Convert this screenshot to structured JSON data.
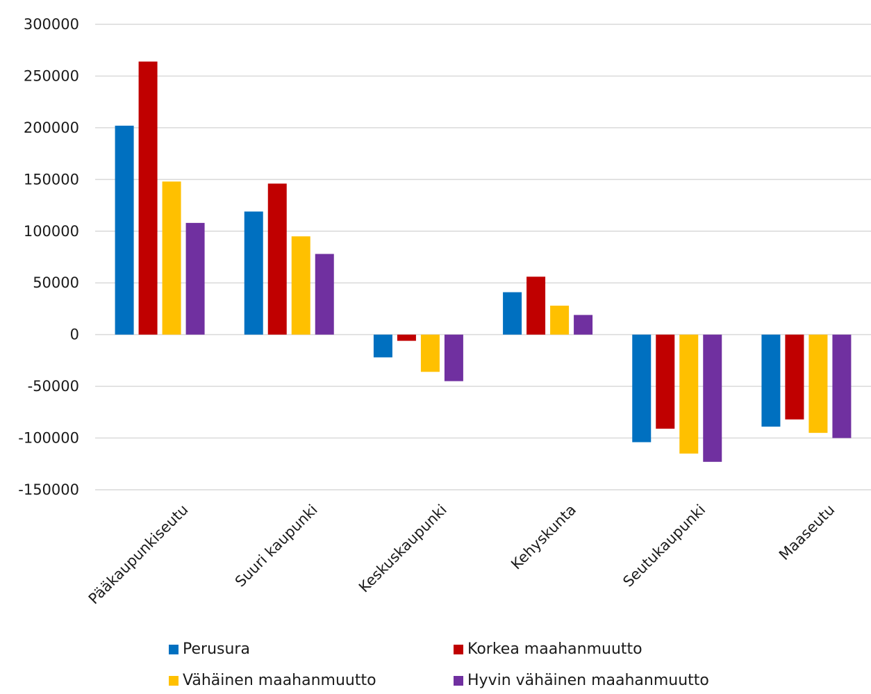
{
  "chart_data": {
    "type": "bar",
    "categories": [
      "Pääkaupunkiseutu",
      "Suuri kaupunki",
      "Keskuskaupunki",
      "Kehyskunta",
      "Seutukaupunki",
      "Maaseutu"
    ],
    "series": [
      {
        "name": "Perusura",
        "color": "#0070C0",
        "values": [
          202000,
          119000,
          -22000,
          41000,
          -104000,
          -89000
        ]
      },
      {
        "name": "Korkea maahanmuutto",
        "color": "#C00000",
        "values": [
          264000,
          146000,
          -6000,
          56000,
          -91000,
          -82000
        ]
      },
      {
        "name": "Vähäinen maahanmuutto",
        "color": "#FFC000",
        "values": [
          148000,
          95000,
          -36000,
          28000,
          -115000,
          -95000
        ]
      },
      {
        "name": "Hyvin vähäinen maahanmuutto",
        "color": "#7030A0",
        "values": [
          108000,
          78000,
          -45000,
          19000,
          -123000,
          -100000
        ]
      }
    ],
    "yticks": [
      "300000",
      "250000",
      "200000",
      "150000",
      "100000",
      "50000",
      "0",
      "-50000",
      "-100000",
      "-150000"
    ],
    "ylim": [
      -150000,
      300000
    ],
    "grid": true,
    "legend_position": "bottom",
    "title": "",
    "xlabel": "",
    "ylabel": ""
  }
}
